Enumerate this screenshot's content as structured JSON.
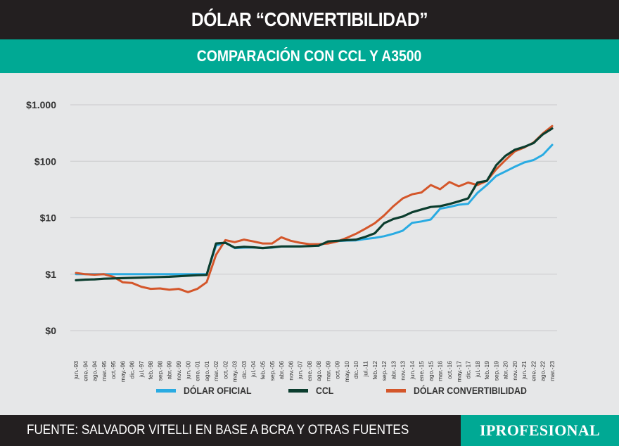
{
  "header": {
    "title": "DÓLAR “CONVERTIBILIDAD”",
    "subtitle": "COMPARACIÓN CON CCL Y A3500"
  },
  "footer": {
    "source": "FUENTE: SALVADOR VITELLI EN BASE A BCRA Y OTRAS FUENTES",
    "logo": "IPROFESIONAL"
  },
  "colors": {
    "header_bg": "#231f20",
    "accent": "#00a994",
    "background": "#e6e7e8",
    "oficial": "#29abe2",
    "ccl": "#0b3d2e",
    "convertibilidad": "#d4562a"
  },
  "legend": [
    {
      "key": "oficial",
      "label": "DÓLAR OFICIAL",
      "color": "#29abe2"
    },
    {
      "key": "ccl",
      "label": "CCL",
      "color": "#0b3d2e"
    },
    {
      "key": "convertibilidad",
      "label": "DÓLAR CONVERTIBILIDAD",
      "color": "#d4562a"
    }
  ],
  "chart_data": {
    "type": "line",
    "title": "DÓLAR “CONVERTIBILIDAD”",
    "subtitle": "COMPARACIÓN CON CCL Y A3500",
    "xlabel": "",
    "ylabel": "",
    "yscale": "log",
    "ylim": [
      0.1,
      1000
    ],
    "y_ticks": [
      {
        "value": 1000,
        "label": "$1.000"
      },
      {
        "value": 100,
        "label": "$100"
      },
      {
        "value": 10,
        "label": "$10"
      },
      {
        "value": 1,
        "label": "$1"
      },
      {
        "value": 0.1,
        "label": "$0"
      }
    ],
    "grid": true,
    "legend_position": "bottom",
    "categories": [
      "jun.-93",
      "ene.-94",
      "ago.-94",
      "mar.-95",
      "oct.-95",
      "may.-96",
      "dic.-96",
      "jul.-97",
      "feb.-98",
      "sep.-98",
      "abr.-99",
      "nov.-99",
      "jun.-00",
      "ene.-01",
      "ago.-01",
      "mar.-02",
      "oct.-02",
      "may.-03",
      "dic.-03",
      "jul.-04",
      "feb.-05",
      "sep.-05",
      "abr.-06",
      "nov.-06",
      "jun.-07",
      "ene.-08",
      "ago.-08",
      "mar.-09",
      "oct.-09",
      "may.-10",
      "dic.-10",
      "jul.-11",
      "feb.-12",
      "sep.-12",
      "abr.-13",
      "nov.-13",
      "jun.-14",
      "ene.-15",
      "ago.-15",
      "mar.-16",
      "oct.-16",
      "may.-17",
      "dic.-17",
      "jul.-18",
      "feb.-19",
      "sep.-19",
      "abr.-20",
      "nov.-20",
      "jun.-21",
      "ene.-22",
      "ago.-22",
      "mar.-23"
    ],
    "series": [
      {
        "name": "DÓLAR OFICIAL",
        "color": "#29abe2",
        "values": [
          1,
          1,
          1,
          1,
          1,
          1,
          1,
          1,
          1,
          1,
          1,
          1,
          1,
          1,
          1,
          3.2,
          3.6,
          2.9,
          2.95,
          2.98,
          2.9,
          2.95,
          3.08,
          3.1,
          3.1,
          3.15,
          3.2,
          3.75,
          3.85,
          3.93,
          3.97,
          4.2,
          4.4,
          4.7,
          5.2,
          5.9,
          8.1,
          8.6,
          9.3,
          14.5,
          15.5,
          17,
          17.6,
          27.5,
          38,
          55,
          66,
          80,
          95,
          105,
          130,
          195
        ]
      },
      {
        "name": "CCL",
        "color": "#0b3d2e",
        "values": [
          0.78,
          0.8,
          0.81,
          0.83,
          0.84,
          0.85,
          0.86,
          0.87,
          0.88,
          0.89,
          0.9,
          0.92,
          0.94,
          0.96,
          0.97,
          3.5,
          3.6,
          2.95,
          3.05,
          3.0,
          2.9,
          3.0,
          3.1,
          3.1,
          3.1,
          3.15,
          3.2,
          3.8,
          3.9,
          4.0,
          4.1,
          4.6,
          5.3,
          8.0,
          9.5,
          10.5,
          12.5,
          14,
          15.5,
          16,
          17.5,
          19.5,
          22,
          42,
          45,
          85,
          125,
          160,
          180,
          210,
          300,
          380
        ]
      },
      {
        "name": "DÓLAR CONVERTIBILIDAD",
        "color": "#d4562a",
        "values": [
          1.05,
          1.0,
          0.98,
          1.0,
          0.9,
          0.72,
          0.7,
          0.6,
          0.55,
          0.56,
          0.53,
          0.55,
          0.48,
          0.55,
          0.72,
          2.2,
          4.0,
          3.7,
          4.1,
          3.8,
          3.5,
          3.5,
          4.5,
          3.9,
          3.6,
          3.4,
          3.4,
          3.5,
          3.8,
          4.4,
          5.2,
          6.4,
          8.0,
          11,
          16,
          22,
          26,
          28,
          38,
          32,
          43,
          36,
          42,
          38,
          45,
          72,
          105,
          150,
          175,
          215,
          310,
          420
        ]
      }
    ]
  }
}
